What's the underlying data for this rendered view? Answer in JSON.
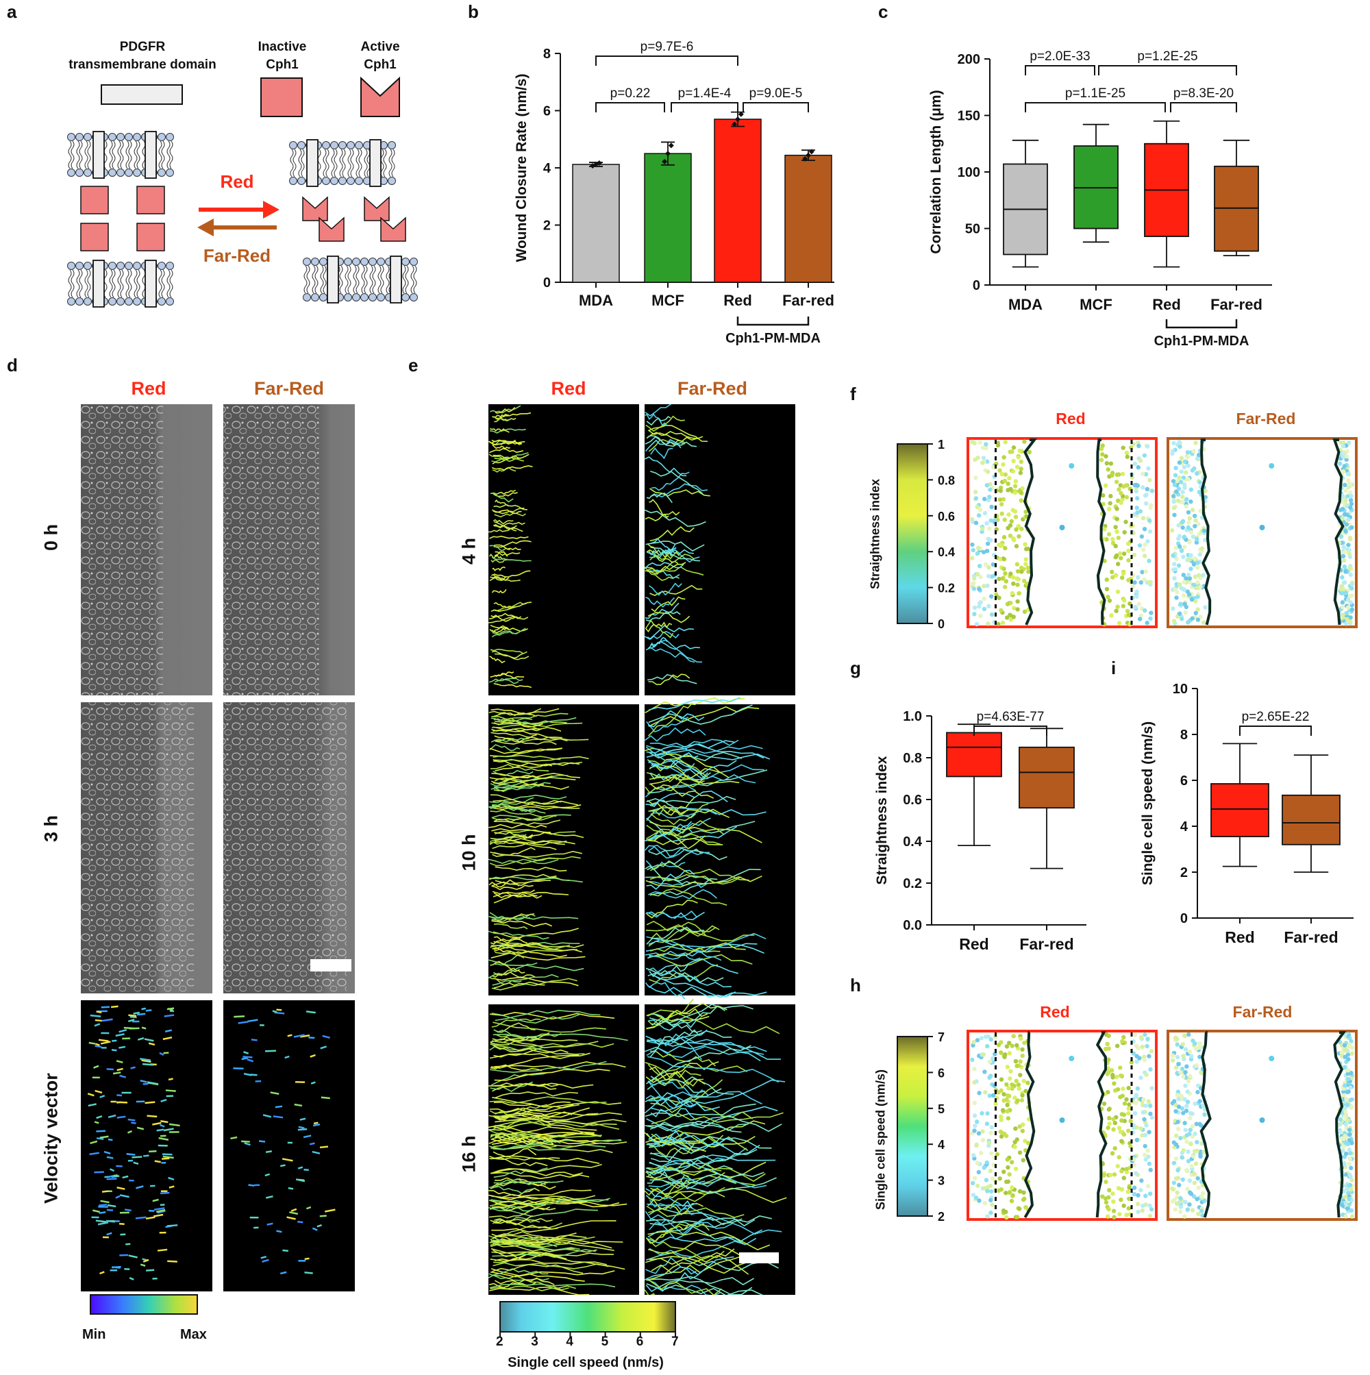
{
  "panel_letters": {
    "a": "a",
    "b": "b",
    "c": "c",
    "d": "d",
    "e": "e",
    "f": "f",
    "g": "g",
    "h": "h",
    "i": "i"
  },
  "panel_a": {
    "pdgfr_label_1": "PDGFR",
    "pdgfr_label_2": "transmembrane domain",
    "inactive_1": "Inactive",
    "inactive_2": "Cph1",
    "active_1": "Active",
    "active_2": "Cph1",
    "red_label": "Red",
    "farred_label": "Far-Red",
    "colors": {
      "red": "#ff2a17",
      "brown": "#b85c1e",
      "cph1": "#f08080",
      "lipid": "#b8cbe8"
    }
  },
  "panel_d": {
    "col_red": "Red",
    "col_farred": "Far-Red",
    "row_0h": "0 h",
    "row_3h": "3 h",
    "row_velocity": "Velocity vector",
    "cbar_min": "Min",
    "cbar_max": "Max"
  },
  "panel_e": {
    "col_red": "Red",
    "col_farred": "Far-Red",
    "row_4h": "4 h",
    "row_10h": "10 h",
    "row_16h": "16 h",
    "cbar_label": "Single cell speed (nm/s)",
    "cbar_ticks": [
      "2",
      "3",
      "4",
      "5",
      "6",
      "7"
    ]
  },
  "panel_f": {
    "col_red": "Red",
    "col_farred": "Far-Red",
    "cbar_label": "Straightness index",
    "cbar_ticks": [
      "1",
      "0.8",
      "0.6",
      "0.4",
      "0.2",
      "0"
    ]
  },
  "panel_h": {
    "col_red": "Red",
    "col_farred": "Far-Red",
    "cbar_label": "Single cell speed (nm/s)",
    "cbar_ticks": [
      "7",
      "6",
      "5",
      "4",
      "3",
      "2"
    ]
  },
  "chart_data": [
    {
      "id": "b",
      "type": "bar",
      "categories": [
        "MDA",
        "MCF",
        "Red",
        "Far-red"
      ],
      "values": [
        4.12,
        4.5,
        5.7,
        4.44
      ],
      "errors": [
        0.07,
        0.4,
        0.25,
        0.18
      ],
      "colors": [
        "#c0c0c0",
        "#2e9e2a",
        "#ff2010",
        "#b55a1e"
      ],
      "ylabel": "Wound Closure Rate (nm/s)",
      "ylim": [
        0,
        8
      ],
      "yticks": [
        "0",
        "2",
        "4",
        "6",
        "8"
      ],
      "group_label": "Cph1-PM-MDA",
      "pvalues": [
        {
          "text": "p=9.7E-6",
          "from": "MDA",
          "to": "Red"
        },
        {
          "text": "p=0.22",
          "from": "MDA",
          "to": "MCF"
        },
        {
          "text": "p=1.4E-4",
          "from": "MCF",
          "to": "Red"
        },
        {
          "text": "p=9.0E-5",
          "from": "Red",
          "to": "Far-red"
        }
      ]
    },
    {
      "id": "c",
      "type": "box",
      "categories": [
        "MDA",
        "MCF",
        "Red",
        "Far-red"
      ],
      "boxes": [
        {
          "min": 16,
          "q1": 27,
          "median": 67,
          "q3": 107,
          "max": 128
        },
        {
          "min": 38,
          "q1": 50,
          "median": 86,
          "q3": 123,
          "max": 142
        },
        {
          "min": 16,
          "q1": 43,
          "median": 84,
          "q3": 125,
          "max": 145
        },
        {
          "min": 26,
          "q1": 30,
          "median": 68,
          "q3": 105,
          "max": 128
        }
      ],
      "colors": [
        "#c0c0c0",
        "#2e9e2a",
        "#ff2010",
        "#b55a1e"
      ],
      "ylabel": "Correlation Length (μm)",
      "ylim": [
        0,
        200
      ],
      "yticks": [
        "0",
        "50",
        "100",
        "150",
        "200"
      ],
      "group_label": "Cph1-PM-MDA",
      "pvalues": [
        {
          "text": "p=2.0E-33",
          "from": "MDA",
          "to": "MCF"
        },
        {
          "text": "p=1.2E-25",
          "from": "MCF",
          "to": "Far-red"
        },
        {
          "text": "p=1.1E-25",
          "from": "MDA",
          "to": "Red"
        },
        {
          "text": "p=8.3E-20",
          "from": "Red",
          "to": "Far-red"
        }
      ]
    },
    {
      "id": "g",
      "type": "box",
      "categories": [
        "Red",
        "Far-red"
      ],
      "boxes": [
        {
          "min": 0.38,
          "q1": 0.71,
          "median": 0.85,
          "q3": 0.92,
          "max": 0.96
        },
        {
          "min": 0.27,
          "q1": 0.56,
          "median": 0.73,
          "q3": 0.85,
          "max": 0.94
        }
      ],
      "colors": [
        "#ff2010",
        "#b55a1e"
      ],
      "ylabel": "Straightness index",
      "ylim": [
        0,
        1.0
      ],
      "yticks": [
        "0.0",
        "0.2",
        "0.4",
        "0.6",
        "0.8",
        "1.0"
      ],
      "pvalues": [
        {
          "text": "p=4.63E-77",
          "from": "Red",
          "to": "Far-red"
        }
      ]
    },
    {
      "id": "i",
      "type": "box",
      "categories": [
        "Red",
        "Far-red"
      ],
      "boxes": [
        {
          "min": 2.25,
          "q1": 3.55,
          "median": 4.75,
          "q3": 5.85,
          "max": 7.6
        },
        {
          "min": 2.0,
          "q1": 3.2,
          "median": 4.15,
          "q3": 5.35,
          "max": 7.1
        }
      ],
      "colors": [
        "#ff2010",
        "#b55a1e"
      ],
      "ylabel": "Single cell speed (nm/s)",
      "ylim": [
        0,
        10
      ],
      "yticks": [
        "0",
        "2",
        "4",
        "6",
        "8",
        "10"
      ],
      "pvalues": [
        {
          "text": "p=2.65E-22",
          "from": "Red",
          "to": "Far-red"
        }
      ]
    }
  ]
}
